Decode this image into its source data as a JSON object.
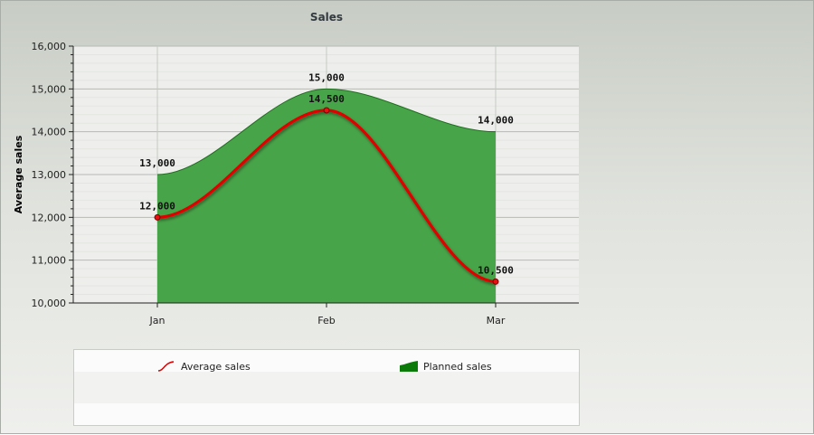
{
  "chart_data": {
    "type": "area",
    "title": "Sales",
    "xlabel": "",
    "ylabel": "Average sales",
    "categories": [
      "Jan",
      "Feb",
      "Mar"
    ],
    "ylim": [
      10000,
      16000
    ],
    "y_ticks": [
      "10,000",
      "11,000",
      "12,000",
      "13,000",
      "14,000",
      "15,000",
      "16,000"
    ],
    "grid": true,
    "legend_position": "bottom",
    "series": [
      {
        "name": "Planned sales",
        "type": "area",
        "color": "#48a448",
        "values": [
          13000,
          15000,
          14000
        ],
        "labels": [
          "13,000",
          "15,000",
          "14,000"
        ]
      },
      {
        "name": "Average sales",
        "type": "line",
        "color": "#e00000",
        "values": [
          12000,
          14500,
          10500
        ],
        "labels": [
          "12,000",
          "14,500",
          "10,500"
        ]
      }
    ]
  },
  "legend": {
    "items": [
      {
        "label": "Average sales",
        "icon": "red-spline-icon"
      },
      {
        "label": "Planned sales",
        "icon": "green-area-icon"
      }
    ]
  }
}
